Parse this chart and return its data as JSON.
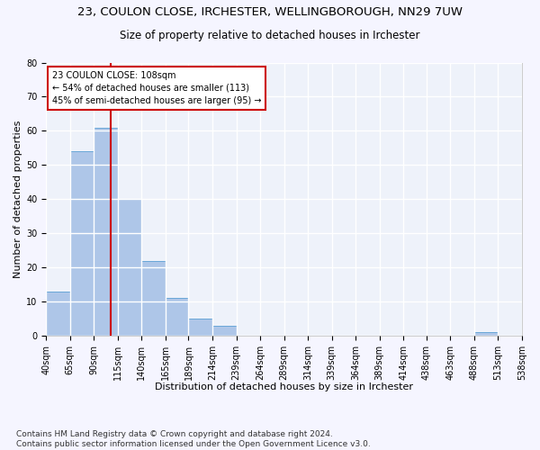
{
  "title_line1": "23, COULON CLOSE, IRCHESTER, WELLINGBOROUGH, NN29 7UW",
  "title_line2": "Size of property relative to detached houses in Irchester",
  "xlabel": "Distribution of detached houses by size in Irchester",
  "ylabel": "Number of detached properties",
  "bar_color": "#aec6e8",
  "bar_edge_color": "#5a9fd4",
  "background_color": "#eef2fa",
  "grid_color": "#ffffff",
  "annotation_text": "23 COULON CLOSE: 108sqm\n← 54% of detached houses are smaller (113)\n45% of semi-detached houses are larger (95) →",
  "annotation_box_color": "#ffffff",
  "annotation_border_color": "#cc0000",
  "vline_x": 108,
  "vline_color": "#cc0000",
  "bin_edges": [
    40,
    65,
    90,
    115,
    140,
    165,
    189,
    214,
    239,
    264,
    289,
    314,
    339,
    364,
    389,
    414,
    438,
    463,
    488,
    513,
    538
  ],
  "bar_heights": [
    13,
    54,
    61,
    40,
    22,
    11,
    5,
    3,
    0,
    0,
    0,
    0,
    0,
    0,
    0,
    0,
    0,
    0,
    1,
    0
  ],
  "ylim": [
    0,
    80
  ],
  "yticks": [
    0,
    10,
    20,
    30,
    40,
    50,
    60,
    70,
    80
  ],
  "footnote": "Contains HM Land Registry data © Crown copyright and database right 2024.\nContains public sector information licensed under the Open Government Licence v3.0.",
  "title_fontsize": 9.5,
  "subtitle_fontsize": 8.5,
  "axis_label_fontsize": 8,
  "tick_fontsize": 7,
  "footnote_fontsize": 6.5,
  "ylabel_fontsize": 8
}
